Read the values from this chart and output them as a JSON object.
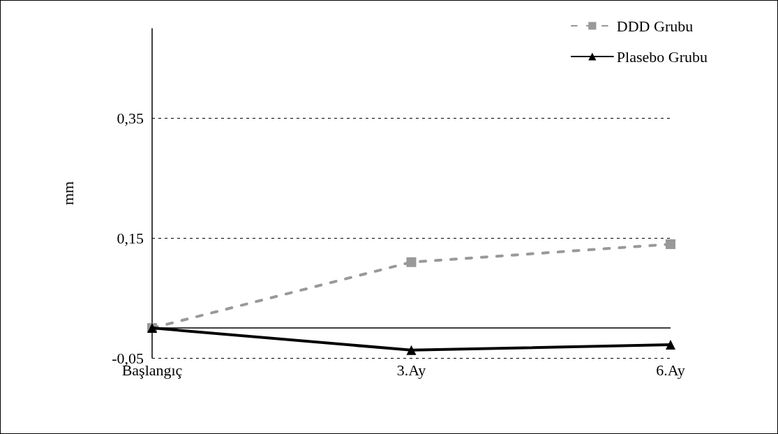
{
  "chart_data": {
    "type": "line",
    "ylabel": "mm",
    "categories": [
      "Başlangıç",
      "3.Ay",
      "6.Ay"
    ],
    "series": [
      {
        "name": "DDD Grubu",
        "color": "#999999",
        "values": [
          0.0,
          0.11,
          0.14
        ],
        "marker": "square",
        "line_style": "dashed"
      },
      {
        "name": "Plasebo Grubu",
        "color": "#000000",
        "values": [
          0.0,
          -0.037,
          -0.028
        ],
        "marker": "triangle",
        "line_style": "solid"
      }
    ],
    "ylim": [
      -0.05,
      0.5
    ],
    "yticks": [
      {
        "value": -0.05,
        "label": "-0,05"
      },
      {
        "value": 0.15,
        "label": "0,15"
      },
      {
        "value": 0.35,
        "label": "0,35"
      }
    ],
    "grid": "y",
    "legend": "top right",
    "ref_lines": [
      {
        "axis": "y",
        "value": 0,
        "color": "#000000",
        "line_style": "solid"
      }
    ]
  }
}
